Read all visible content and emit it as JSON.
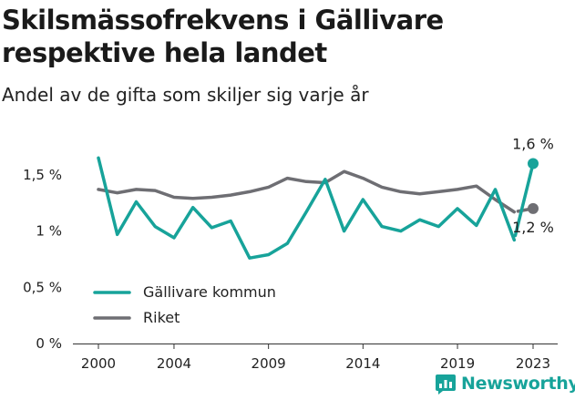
{
  "header": {
    "title_line1": "Skilsmässofrekvens i Gällivare",
    "title_line2": "respektive hela landet",
    "subtitle": "Andel av de gifta som skiljer sig varje år"
  },
  "brand": {
    "name": "Newsworthy",
    "color": "#17a39a"
  },
  "chart_data": {
    "type": "line",
    "title": "Skilsmässofrekvens i Gällivare respektive hela landet",
    "subtitle": "Andel av de gifta som skiljer sig varje år",
    "xlabel": "",
    "ylabel": "",
    "x": [
      2000,
      2001,
      2002,
      2003,
      2004,
      2005,
      2006,
      2007,
      2008,
      2009,
      2010,
      2011,
      2012,
      2013,
      2014,
      2015,
      2016,
      2017,
      2018,
      2019,
      2020,
      2021,
      2022,
      2023
    ],
    "xticks": [
      2000,
      2004,
      2009,
      2014,
      2019,
      2023
    ],
    "xtick_labels": [
      "2000",
      "2004",
      "2009",
      "2014",
      "2019",
      "2023"
    ],
    "ylim": [
      0,
      1.75
    ],
    "yticks": [
      0,
      0.5,
      1,
      1.5
    ],
    "ytick_labels": [
      "0 %",
      "0,5 %",
      "1 %",
      "1,5 %"
    ],
    "grid": false,
    "legend_position": "bottom-left",
    "series": [
      {
        "name": "Gällivare kommun",
        "color": "#17a39a",
        "values": [
          1.65,
          0.97,
          1.26,
          1.04,
          0.94,
          1.21,
          1.03,
          1.09,
          0.76,
          0.79,
          0.89,
          1.17,
          1.46,
          1.0,
          1.28,
          1.04,
          1.0,
          1.1,
          1.04,
          1.2,
          1.05,
          1.37,
          0.92,
          1.6
        ],
        "end_label": "1,6 %"
      },
      {
        "name": "Riket",
        "color": "#6e6e73",
        "values": [
          1.37,
          1.34,
          1.37,
          1.36,
          1.3,
          1.29,
          1.3,
          1.32,
          1.35,
          1.39,
          1.47,
          1.44,
          1.43,
          1.53,
          1.47,
          1.39,
          1.35,
          1.33,
          1.35,
          1.37,
          1.4,
          1.28,
          1.17,
          1.2
        ],
        "end_label": "1,2 %"
      }
    ]
  }
}
